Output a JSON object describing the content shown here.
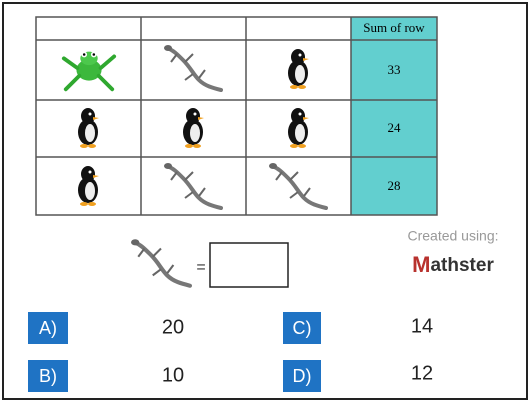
{
  "table": {
    "header": "Sum of row",
    "sums": [
      33,
      24,
      28
    ]
  },
  "question": {
    "equals": "="
  },
  "credit": {
    "text": "Created using:",
    "brand_first": "M",
    "brand_rest": "athster"
  },
  "options": [
    {
      "letter": "A)",
      "value": 20
    },
    {
      "letter": "B)",
      "value": 10
    },
    {
      "letter": "C)",
      "value": 14
    },
    {
      "letter": "D)",
      "value": 12
    }
  ]
}
